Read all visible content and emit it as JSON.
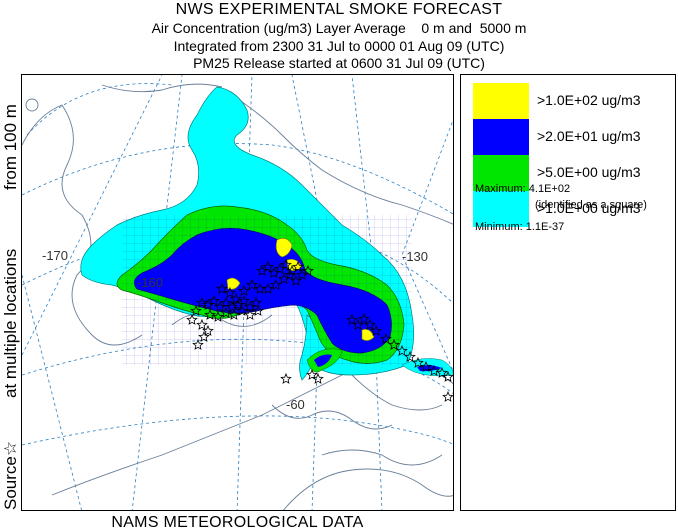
{
  "header": {
    "title": "NWS EXPERIMENTAL SMOKE FORECAST",
    "line2": "Air Concentration (ug/m3) Layer Average    0 m and  5000 m",
    "line3": "Integrated from 2300 31 Jul to 0000 01 Aug 09 (UTC)",
    "line4": "PM25 Release started at 0600 31 Jul 09 (UTC)"
  },
  "side_label": {
    "part_source": "Source☆",
    "part_locations": "at multiple locations",
    "part_from": "from   100 m"
  },
  "map": {
    "lon_labels": [
      "-170",
      "-160",
      "-130",
      "-60"
    ],
    "colors": {
      "yellow": "#ffff00",
      "blue": "#0000ff",
      "green": "#00e600",
      "cyan": "#00ffff",
      "lines": "#2a7fc0",
      "coast": "#6a7f99"
    },
    "source_marker_icon": "star-outline-icon"
  },
  "legend": {
    "items": [
      {
        "label": ">1.0E+02 ug/m3",
        "color": "#ffff00"
      },
      {
        "label": ">2.0E+01 ug/m3",
        "color": "#0000ff"
      },
      {
        "label": ">5.0E+00 ug/m3",
        "color": "#00e600"
      },
      {
        "label": ">1.0E+00 ug/m3",
        "color": "#00ffff"
      }
    ],
    "maximum": "Maximum: 4.1E+02",
    "maximum_note": "(identified as a square)",
    "minimum": "Minimum: 1.1E-37"
  },
  "footer": "NAMS METEOROLOGICAL DATA"
}
